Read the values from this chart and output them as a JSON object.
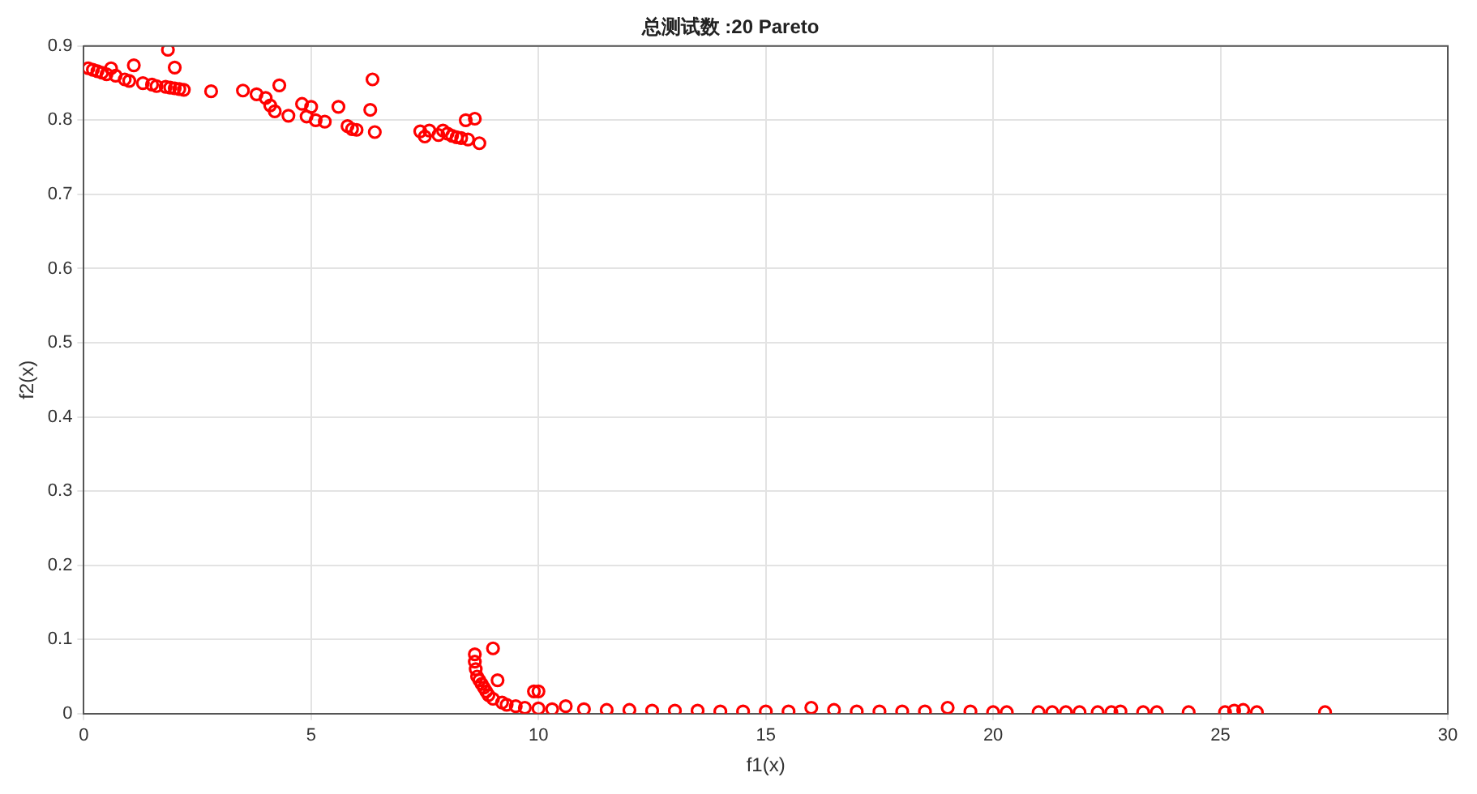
{
  "chart_data": {
    "type": "scatter",
    "title": "总测试数 :20 Pareto",
    "xlabel": "f1(x)",
    "ylabel": "f2(x)",
    "xlim": [
      0,
      30
    ],
    "xticks": [
      0,
      5,
      10,
      15,
      20,
      25,
      30
    ],
    "ylim": [
      0,
      0.9
    ],
    "yticks": [
      0,
      0.1,
      0.2,
      0.3,
      0.4,
      0.5,
      0.6,
      0.7,
      0.8,
      0.9
    ],
    "grid": true,
    "marker": "circle",
    "legend": false,
    "series": [
      {
        "color": "#ff0000",
        "x": [
          0.1,
          0.2,
          0.3,
          0.4,
          0.5,
          0.6,
          0.7,
          0.9,
          1.0,
          1.1,
          1.3,
          1.5,
          1.6,
          1.8,
          1.85,
          1.9,
          2.0,
          2.0,
          2.1,
          2.2,
          2.8,
          3.5,
          3.8,
          4.0,
          4.1,
          4.3,
          4.2,
          4.5,
          4.8,
          4.9,
          5.0,
          5.1,
          5.3,
          5.6,
          5.8,
          5.9,
          6.0,
          6.3,
          6.35,
          6.4,
          7.4,
          7.5,
          7.6,
          7.8,
          7.9,
          8.0,
          8.1,
          8.2,
          8.3,
          8.4,
          8.45,
          8.6,
          8.7,
          8.6,
          8.6,
          8.62,
          8.65,
          8.7,
          8.75,
          8.8,
          8.85,
          8.9,
          9.0,
          9.0,
          9.1,
          9.2,
          9.3,
          9.5,
          9.7,
          9.9,
          10.0,
          10.0,
          10.3,
          10.6,
          11,
          11.5,
          12,
          12.5,
          13,
          13.5,
          14,
          14.5,
          15,
          15.5,
          16,
          16.5,
          17,
          17.5,
          18,
          18.5,
          19,
          19.5,
          20,
          20.3,
          21,
          21.3,
          21.6,
          21.9,
          22.3,
          22.6,
          22.8,
          23.3,
          23.6,
          24.3,
          25.1,
          25.3,
          25.5,
          25.8,
          27.3
        ],
        "values": [
          0.87,
          0.868,
          0.866,
          0.864,
          0.862,
          0.87,
          0.86,
          0.855,
          0.853,
          0.874,
          0.85,
          0.848,
          0.846,
          0.845,
          0.895,
          0.844,
          0.871,
          0.843,
          0.842,
          0.841,
          0.839,
          0.84,
          0.835,
          0.83,
          0.82,
          0.847,
          0.812,
          0.806,
          0.822,
          0.805,
          0.818,
          0.8,
          0.798,
          0.818,
          0.792,
          0.788,
          0.787,
          0.814,
          0.855,
          0.784,
          0.785,
          0.778,
          0.786,
          0.78,
          0.786,
          0.782,
          0.779,
          0.777,
          0.776,
          0.8,
          0.774,
          0.802,
          0.769,
          0.08,
          0.07,
          0.06,
          0.05,
          0.045,
          0.04,
          0.035,
          0.03,
          0.025,
          0.02,
          0.088,
          0.045,
          0.015,
          0.012,
          0.01,
          0.008,
          0.03,
          0.03,
          0.007,
          0.006,
          0.01,
          0.006,
          0.005,
          0.005,
          0.004,
          0.004,
          0.004,
          0.003,
          0.003,
          0.003,
          0.003,
          0.008,
          0.005,
          0.003,
          0.003,
          0.003,
          0.003,
          0.008,
          0.003,
          0.002,
          0.002,
          0.002,
          0.002,
          0.002,
          0.002,
          0.002,
          0.002,
          0.003,
          0.002,
          0.002,
          0.002,
          0.002,
          0.004,
          0.005,
          0.002,
          0.002
        ]
      }
    ]
  }
}
